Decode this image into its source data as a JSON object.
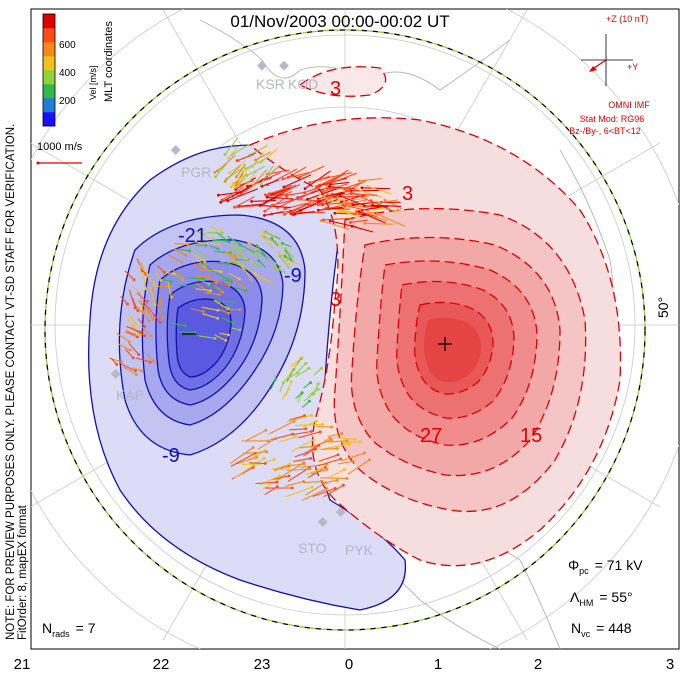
{
  "title": "01/Nov/2003 00:00-00:02 UT",
  "coordinates": "MLT coordinates",
  "side_note": "NOTE: FOR PREVIEW PURPOSES ONLY. PLEASE CONTACT VT-SD STAFF FOR VERIFICATION.",
  "fit_order": "FitOrder: 8, mapEX format",
  "colorbar": {
    "label": "Vel [m/s]",
    "ticks": [
      "600",
      "400",
      "200"
    ],
    "colors": [
      "#1a10ff",
      "#1f7fd6",
      "#35b84a",
      "#8fd23a",
      "#f0c21a",
      "#f58a1a",
      "#ff4a1a",
      "#e00000"
    ]
  },
  "vector_scale": "1000 m/s",
  "imf": {
    "z_label": "+Z (10 nT)",
    "y_label": "+Y",
    "source": "OMNI IMF",
    "model": "Stat Mod: RG96",
    "condition": "Bz-/By-, 6<BT<12"
  },
  "latitude_label": "50°",
  "stations": [
    "KSR",
    "KOD",
    "PGR",
    "KAP",
    "STO",
    "PYK"
  ],
  "contour_labels": {
    "negative": [
      "-21",
      "-9",
      "-9"
    ],
    "positive": [
      "3",
      "3",
      "3",
      "27",
      "15"
    ]
  },
  "stats": {
    "phi_label": "Φ",
    "phi_sub": "pc",
    "phi_value": "= 71 kV",
    "lambda_label": "Λ",
    "lambda_sub": "HM",
    "lambda_value": "= 55°",
    "nvc_label": "N",
    "nvc_sub": "vc",
    "nvc_value": "= 448",
    "nrads_label": "N",
    "nrads_sub": "rads",
    "nrads_value": "= 7"
  },
  "mlt_ticks": [
    "21",
    "22",
    "23",
    "0",
    "1",
    "2",
    "3"
  ],
  "colors": {
    "positive": "#e00000",
    "negative": "#1010b0",
    "hmb": "#8fd23a"
  }
}
